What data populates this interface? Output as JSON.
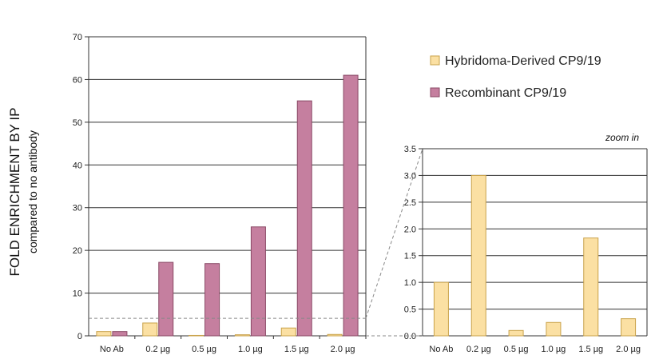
{
  "chart_data": {
    "type": "bar",
    "ylabel": "FOLD ENRICHMENT BY IP",
    "ylabel_sub": "compared to no antibody",
    "categories": [
      "No Ab",
      "0.2 µg",
      "0.5 µg",
      "1.0 µg",
      "1.5 µg",
      "2.0 µg"
    ],
    "series": [
      {
        "name": "Hybridoma-Derived CP9/19",
        "color": "#fbe0a3",
        "stroke": "#c9a24a",
        "values": [
          1.0,
          3.0,
          0.1,
          0.25,
          1.83,
          0.32
        ]
      },
      {
        "name": "Recombinant CP9/19",
        "color": "#c57f9f",
        "stroke": "#8a4a66",
        "values": [
          1.0,
          17.2,
          16.9,
          25.5,
          55.0,
          61.0
        ]
      }
    ],
    "main": {
      "ylim": [
        0,
        70
      ],
      "yticks": [
        "0",
        "10",
        "20",
        "30",
        "40",
        "50",
        "60",
        "70"
      ],
      "grid": true
    },
    "zoom": {
      "note": "zoom in",
      "ylim": [
        0,
        3.5
      ],
      "yticks": [
        "0.0",
        "0.5",
        "1.0",
        "1.5",
        "2.0",
        "2.5",
        "3.0",
        "3.5"
      ],
      "series_index": 0,
      "grid": true
    },
    "legend_position": "top-right"
  }
}
